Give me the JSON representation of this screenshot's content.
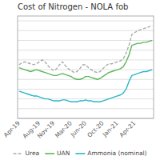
{
  "chart_data": {
    "type": "line",
    "title": "Cost of Nitrogen - NOLA fob",
    "categories": [
      "Apr-19",
      null,
      null,
      null,
      null,
      null,
      null,
      "Aug-19",
      null,
      null,
      null,
      null,
      "Nov-19",
      null,
      null,
      null,
      null,
      null,
      "Mar-20",
      null,
      null,
      null,
      null,
      "Jun-20",
      null,
      null,
      null,
      null,
      null,
      "Oct-20",
      null,
      null,
      null,
      null,
      "Jan-21",
      null,
      null,
      null,
      null,
      null,
      "Apr-21",
      null,
      null,
      null,
      null,
      null,
      null
    ],
    "series": [
      {
        "name": "Urea",
        "color": "#aaaaaa",
        "line_style": "dashed",
        "values": [
          0.55,
          0.57,
          0.58,
          0.57,
          0.56,
          0.55,
          0.56,
          0.58,
          0.6,
          0.58,
          0.54,
          0.51,
          0.49,
          0.51,
          0.55,
          0.58,
          0.54,
          0.51,
          0.49,
          0.47,
          0.48,
          0.51,
          0.55,
          0.55,
          0.52,
          0.5,
          0.48,
          0.47,
          0.48,
          0.51,
          0.54,
          0.56,
          0.56,
          0.57,
          0.58,
          0.59,
          0.61,
          0.67,
          0.75,
          0.86,
          0.88,
          0.9,
          0.91,
          0.92,
          0.93,
          0.94,
          0.95
        ]
      },
      {
        "name": "UAN",
        "color": "#5cb85c",
        "line_style": "solid",
        "values": [
          0.52,
          0.51,
          0.5,
          0.49,
          0.48,
          0.49,
          0.5,
          0.49,
          0.48,
          0.47,
          0.46,
          0.45,
          0.44,
          0.44,
          0.45,
          0.46,
          0.45,
          0.44,
          0.43,
          0.41,
          0.4,
          0.4,
          0.41,
          0.43,
          0.43,
          0.42,
          0.41,
          0.4,
          0.41,
          0.43,
          0.45,
          0.47,
          0.48,
          0.49,
          0.5,
          0.51,
          0.53,
          0.58,
          0.65,
          0.75,
          0.76,
          0.77,
          0.77,
          0.78,
          0.78,
          0.79,
          0.8
        ]
      },
      {
        "name": "Ammonia (nominal)",
        "color": "#29b6c8",
        "line_style": "solid",
        "values": [
          0.28,
          0.27,
          0.26,
          0.25,
          0.24,
          0.23,
          0.23,
          0.22,
          0.21,
          0.2,
          0.2,
          0.19,
          0.18,
          0.18,
          0.18,
          0.19,
          0.19,
          0.18,
          0.17,
          0.17,
          0.17,
          0.18,
          0.18,
          0.19,
          0.18,
          0.18,
          0.17,
          0.17,
          0.17,
          0.18,
          0.19,
          0.2,
          0.21,
          0.22,
          0.23,
          0.24,
          0.26,
          0.3,
          0.38,
          0.44,
          0.45,
          0.46,
          0.47,
          0.48,
          0.48,
          0.49,
          0.5
        ]
      }
    ],
    "ylim": [
      0.0,
      1.05
    ],
    "yticks": [
      0.0,
      0.1,
      0.2,
      0.3,
      0.4,
      0.5,
      0.6,
      0.7,
      0.8,
      0.9,
      1.0
    ],
    "tick_labels": "x",
    "grid": true,
    "legend": "bottom"
  }
}
